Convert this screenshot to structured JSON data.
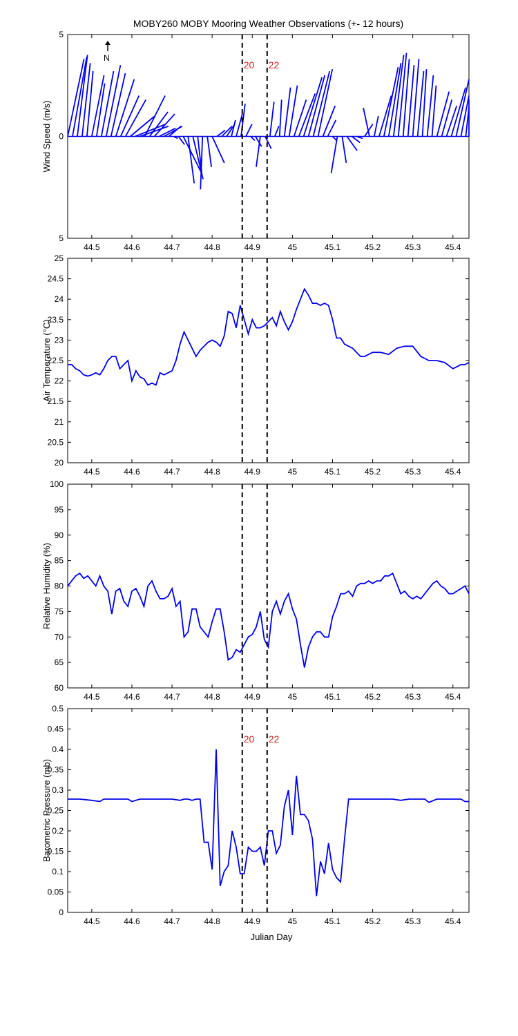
{
  "title": "MOBY260 MOBY Mooring Weather Observations (+- 12 hours)",
  "xlabel": "Julian Day",
  "north_label": "N",
  "x_ticks": [
    "44.5",
    "44.6",
    "44.7",
    "44.8",
    "44.9",
    "45",
    "45.1",
    "45.2",
    "45.3",
    "45.4"
  ],
  "markers": [
    {
      "x": 44.875,
      "label": "20"
    },
    {
      "x": 44.937,
      "label": "22"
    }
  ],
  "colors": {
    "series": "#0000ee",
    "marker_label": "#cc2222",
    "marker_line": "#000000"
  },
  "chart_data": [
    {
      "type": "line",
      "subtype": "wind-vector-stick",
      "ylabel": "Wind Speed (m/s)",
      "xlim": [
        44.44,
        45.44
      ],
      "ylim": [
        -5,
        5
      ],
      "y_ticks": [
        {
          "v": 5,
          "label": "5"
        },
        {
          "v": 0,
          "label": "0"
        },
        {
          "v": -5,
          "label": "5"
        }
      ],
      "marker_labels_visible": true,
      "vectors": [
        [
          44.44,
          0.8,
          3.8
        ],
        [
          44.452,
          0.7,
          3.9
        ],
        [
          44.464,
          0.5,
          4.0
        ],
        [
          44.476,
          0.4,
          3.6
        ],
        [
          44.488,
          0.3,
          3.2
        ],
        [
          44.5,
          0.6,
          3.0
        ],
        [
          44.512,
          0.4,
          2.6
        ],
        [
          44.524,
          0.6,
          3.2
        ],
        [
          44.536,
          0.7,
          3.5
        ],
        [
          44.548,
          0.7,
          3.1
        ],
        [
          44.56,
          0.9,
          2.8
        ],
        [
          44.572,
          0.9,
          2.0
        ],
        [
          44.584,
          1.0,
          1.8
        ],
        [
          44.596,
          1.2,
          1.0
        ],
        [
          44.608,
          1.5,
          0.6
        ],
        [
          44.62,
          1.4,
          0.5
        ],
        [
          44.632,
          1.0,
          2.0
        ],
        [
          44.644,
          0.9,
          1.2
        ],
        [
          44.656,
          1.0,
          1.1
        ],
        [
          44.668,
          0.8,
          0.4
        ],
        [
          44.68,
          0.9,
          0.5
        ],
        [
          44.692,
          0.6,
          0.5
        ],
        [
          44.704,
          0.2,
          -0.1
        ],
        [
          44.716,
          0.3,
          -0.4
        ],
        [
          44.728,
          0.9,
          -1.8
        ],
        [
          44.74,
          0.3,
          -2.3
        ],
        [
          44.752,
          0.5,
          -2.1
        ],
        [
          44.764,
          0.2,
          -1.8
        ],
        [
          44.776,
          -0.1,
          -2.6
        ],
        [
          44.788,
          0.2,
          -1.5
        ],
        [
          44.8,
          0.6,
          -1.3
        ],
        [
          44.812,
          0.4,
          0.3
        ],
        [
          44.824,
          0.5,
          0.5
        ],
        [
          44.836,
          0.4,
          0.6
        ],
        [
          44.848,
          0.2,
          0.8
        ],
        [
          44.86,
          0.3,
          1.1
        ],
        [
          44.872,
          0.2,
          1.6
        ],
        [
          44.884,
          0.3,
          0.6
        ],
        [
          44.896,
          0.2,
          -0.2
        ],
        [
          44.908,
          0.3,
          -0.5
        ],
        [
          44.92,
          -0.2,
          -1.5
        ],
        [
          44.932,
          0.3,
          -0.6
        ],
        [
          44.944,
          0.2,
          1.7
        ],
        [
          44.956,
          0.2,
          0.5
        ],
        [
          44.968,
          0.1,
          1.8
        ],
        [
          44.98,
          0.3,
          2.4
        ],
        [
          44.992,
          0.4,
          2.5
        ],
        [
          45.004,
          0.6,
          1.8
        ],
        [
          45.016,
          0.8,
          2.1
        ],
        [
          45.028,
          0.9,
          2.9
        ],
        [
          45.04,
          0.8,
          3.0
        ],
        [
          45.052,
          0.8,
          3.2
        ],
        [
          45.064,
          0.7,
          3.3
        ],
        [
          45.076,
          0.6,
          1.5
        ],
        [
          45.088,
          0.4,
          0.8
        ],
        [
          45.1,
          0.2,
          -0.2
        ],
        [
          45.112,
          -0.3,
          -1.8
        ],
        [
          45.124,
          0.2,
          -1.3
        ],
        [
          45.136,
          0.5,
          -0.7
        ],
        [
          45.148,
          0.4,
          -0.3
        ],
        [
          45.16,
          0.3,
          -0.1
        ],
        [
          45.18,
          0.4,
          0.6
        ],
        [
          45.192,
          -0.3,
          1.4
        ],
        [
          45.204,
          0.2,
          1.0
        ],
        [
          45.216,
          0.6,
          2.0
        ],
        [
          45.228,
          0.7,
          3.4
        ],
        [
          45.24,
          0.6,
          3.6
        ],
        [
          45.252,
          0.5,
          4.0
        ],
        [
          45.264,
          0.4,
          4.1
        ],
        [
          45.276,
          0.3,
          3.8
        ],
        [
          45.288,
          0.3,
          3.5
        ],
        [
          45.3,
          0.3,
          3.8
        ],
        [
          45.312,
          0.3,
          3.2
        ],
        [
          45.324,
          0.2,
          3.3
        ],
        [
          45.336,
          0.3,
          3.0
        ],
        [
          45.348,
          0.2,
          2.5
        ],
        [
          45.36,
          0.6,
          2.2
        ],
        [
          45.372,
          0.5,
          1.8
        ],
        [
          45.384,
          0.5,
          1.5
        ],
        [
          45.396,
          0.7,
          2.4
        ],
        [
          45.408,
          0.7,
          2.8
        ],
        [
          45.42,
          0.8,
          2.0
        ],
        [
          45.432,
          0.6,
          1.4
        ],
        [
          45.44,
          0.4,
          1.8
        ]
      ]
    },
    {
      "type": "line",
      "ylabel": "Air Temperature (°C)",
      "xlim": [
        44.44,
        45.44
      ],
      "ylim": [
        20,
        25
      ],
      "y_ticks": [
        {
          "v": 20,
          "label": "20"
        },
        {
          "v": 20.5,
          "label": "20.5"
        },
        {
          "v": 21,
          "label": "21"
        },
        {
          "v": 21.5,
          "label": "21.5"
        },
        {
          "v": 22,
          "label": "22"
        },
        {
          "v": 22.5,
          "label": "22.5"
        },
        {
          "v": 23,
          "label": "23"
        },
        {
          "v": 23.5,
          "label": "23.5"
        },
        {
          "v": 24,
          "label": "24"
        },
        {
          "v": 24.5,
          "label": "24.5"
        },
        {
          "v": 25,
          "label": "25"
        }
      ],
      "marker_labels_visible": false,
      "x": [
        44.44,
        44.45,
        44.46,
        44.47,
        44.48,
        44.49,
        44.5,
        44.51,
        44.52,
        44.53,
        44.54,
        44.55,
        44.56,
        44.57,
        44.58,
        44.59,
        44.6,
        44.61,
        44.62,
        44.63,
        44.64,
        44.65,
        44.66,
        44.67,
        44.68,
        44.69,
        44.7,
        44.71,
        44.72,
        44.73,
        44.74,
        44.75,
        44.76,
        44.77,
        44.78,
        44.79,
        44.8,
        44.81,
        44.82,
        44.83,
        44.84,
        44.85,
        44.86,
        44.87,
        44.88,
        44.89,
        44.9,
        44.91,
        44.92,
        44.93,
        44.94,
        44.95,
        44.96,
        44.97,
        44.98,
        44.99,
        45.0,
        45.01,
        45.02,
        45.03,
        45.04,
        45.05,
        45.06,
        45.07,
        45.08,
        45.09,
        45.1,
        45.11,
        45.12,
        45.13,
        45.14,
        45.15,
        45.16,
        45.17,
        45.18,
        45.19,
        45.2,
        45.22,
        45.24,
        45.26,
        45.28,
        45.3,
        45.32,
        45.33,
        45.34,
        45.36,
        45.38,
        45.4,
        45.41,
        45.42,
        45.43,
        45.44
      ],
      "y": [
        22.4,
        22.4,
        22.3,
        22.25,
        22.15,
        22.12,
        22.15,
        22.2,
        22.15,
        22.3,
        22.5,
        22.6,
        22.6,
        22.3,
        22.4,
        22.5,
        22.0,
        22.25,
        22.1,
        22.05,
        21.9,
        21.95,
        21.9,
        22.2,
        22.15,
        22.2,
        22.25,
        22.5,
        22.9,
        23.2,
        23.0,
        22.8,
        22.6,
        22.75,
        22.85,
        22.95,
        23.0,
        22.95,
        22.85,
        23.1,
        23.7,
        23.65,
        23.3,
        23.85,
        23.5,
        23.15,
        23.5,
        23.3,
        23.3,
        23.35,
        23.45,
        23.55,
        23.35,
        23.7,
        23.45,
        23.25,
        23.45,
        23.75,
        24.0,
        24.25,
        24.1,
        23.9,
        23.9,
        23.85,
        23.9,
        23.85,
        23.5,
        23.05,
        23.05,
        22.9,
        22.85,
        22.8,
        22.7,
        22.6,
        22.6,
        22.65,
        22.7,
        22.7,
        22.65,
        22.8,
        22.85,
        22.85,
        22.6,
        22.55,
        22.5,
        22.5,
        22.45,
        22.3,
        22.35,
        22.4,
        22.4,
        22.45
      ]
    },
    {
      "type": "line",
      "ylabel": "Relative Humidity (%)",
      "xlim": [
        44.44,
        45.44
      ],
      "ylim": [
        60,
        100
      ],
      "y_ticks": [
        {
          "v": 60,
          "label": "60"
        },
        {
          "v": 65,
          "label": "65"
        },
        {
          "v": 70,
          "label": "70"
        },
        {
          "v": 75,
          "label": "75"
        },
        {
          "v": 80,
          "label": "80"
        },
        {
          "v": 85,
          "label": "85"
        },
        {
          "v": 90,
          "label": "90"
        },
        {
          "v": 95,
          "label": "95"
        },
        {
          "v": 100,
          "label": "100"
        }
      ],
      "marker_labels_visible": false,
      "x": [
        44.44,
        44.45,
        44.46,
        44.47,
        44.48,
        44.49,
        44.5,
        44.51,
        44.52,
        44.53,
        44.54,
        44.55,
        44.56,
        44.57,
        44.58,
        44.59,
        44.6,
        44.61,
        44.62,
        44.63,
        44.64,
        44.65,
        44.66,
        44.67,
        44.68,
        44.69,
        44.7,
        44.71,
        44.72,
        44.73,
        44.74,
        44.75,
        44.76,
        44.77,
        44.78,
        44.79,
        44.8,
        44.81,
        44.82,
        44.83,
        44.84,
        44.85,
        44.86,
        44.87,
        44.88,
        44.89,
        44.9,
        44.91,
        44.92,
        44.93,
        44.94,
        44.95,
        44.96,
        44.97,
        44.98,
        44.99,
        45.0,
        45.01,
        45.02,
        45.03,
        45.04,
        45.05,
        45.06,
        45.07,
        45.08,
        45.09,
        45.1,
        45.11,
        45.12,
        45.13,
        45.14,
        45.15,
        45.16,
        45.17,
        45.18,
        45.19,
        45.2,
        45.21,
        45.22,
        45.23,
        45.24,
        45.25,
        45.26,
        45.27,
        45.28,
        45.29,
        45.3,
        45.31,
        45.32,
        45.33,
        45.34,
        45.35,
        45.36,
        45.37,
        45.38,
        45.39,
        45.4,
        45.41,
        45.42,
        45.43,
        45.44
      ],
      "y": [
        80,
        81,
        82,
        82.5,
        81.5,
        82,
        81,
        80,
        82,
        80,
        79,
        74.5,
        79,
        79.5,
        77,
        76,
        79,
        79.5,
        78,
        76,
        80,
        81,
        79,
        77.5,
        77.5,
        78,
        79.5,
        76,
        77,
        70,
        71,
        75.5,
        75.5,
        72,
        71,
        70,
        73,
        75.5,
        75.5,
        71,
        65.5,
        66,
        67.5,
        67,
        68.5,
        70,
        70.5,
        72,
        75,
        69.5,
        68,
        75,
        77,
        74.5,
        77,
        78.5,
        75.5,
        73.5,
        68.5,
        64,
        68,
        70,
        71,
        71,
        70,
        70,
        74,
        76,
        78.5,
        78.5,
        79,
        78,
        80,
        80.5,
        80.5,
        81,
        80.5,
        81,
        81,
        82,
        82,
        82.5,
        80.5,
        78.5,
        79,
        78,
        77.5,
        78,
        77.5,
        78.5,
        79.5,
        80.5,
        81,
        80,
        79.5,
        78.5,
        78.5,
        79,
        79.5,
        80,
        78.5
      ]
    },
    {
      "type": "line",
      "ylabel": "Barometric Pressure (mb)",
      "xlim": [
        44.44,
        45.44
      ],
      "ylim": [
        0,
        0.5
      ],
      "y_ticks": [
        {
          "v": 0,
          "label": "0"
        },
        {
          "v": 0.05,
          "label": "0.05"
        },
        {
          "v": 0.1,
          "label": "0.1"
        },
        {
          "v": 0.15,
          "label": "0.15"
        },
        {
          "v": 0.2,
          "label": "0.2"
        },
        {
          "v": 0.25,
          "label": "0.25"
        },
        {
          "v": 0.3,
          "label": "0.3"
        },
        {
          "v": 0.35,
          "label": "0.35"
        },
        {
          "v": 0.4,
          "label": "0.4"
        },
        {
          "v": 0.45,
          "label": "0.45"
        },
        {
          "v": 0.5,
          "label": "0.5"
        }
      ],
      "marker_labels_visible": true,
      "x": [
        44.44,
        44.47,
        44.5,
        44.52,
        44.53,
        44.55,
        44.57,
        44.59,
        44.6,
        44.62,
        44.64,
        44.66,
        44.68,
        44.7,
        44.72,
        44.73,
        44.74,
        44.75,
        44.76,
        44.77,
        44.78,
        44.79,
        44.8,
        44.81,
        44.82,
        44.83,
        44.84,
        44.85,
        44.86,
        44.87,
        44.88,
        44.89,
        44.9,
        44.91,
        44.92,
        44.93,
        44.94,
        44.95,
        44.96,
        44.97,
        44.98,
        44.99,
        45.0,
        45.01,
        45.02,
        45.03,
        45.04,
        45.05,
        45.06,
        45.07,
        45.08,
        45.09,
        45.1,
        45.11,
        45.12,
        45.13,
        45.14,
        45.15,
        45.17,
        45.2,
        45.22,
        45.25,
        45.27,
        45.29,
        45.3,
        45.32,
        45.33,
        45.34,
        45.36,
        45.38,
        45.4,
        45.42,
        45.43,
        45.44
      ],
      "y": [
        0.278,
        0.278,
        0.275,
        0.272,
        0.278,
        0.278,
        0.278,
        0.278,
        0.272,
        0.278,
        0.278,
        0.278,
        0.278,
        0.278,
        0.275,
        0.278,
        0.278,
        0.275,
        0.278,
        0.278,
        0.172,
        0.172,
        0.105,
        0.4,
        0.065,
        0.1,
        0.115,
        0.2,
        0.16,
        0.095,
        0.095,
        0.16,
        0.15,
        0.15,
        0.16,
        0.115,
        0.2,
        0.2,
        0.145,
        0.165,
        0.26,
        0.3,
        0.19,
        0.335,
        0.24,
        0.24,
        0.225,
        0.18,
        0.04,
        0.125,
        0.095,
        0.17,
        0.105,
        0.085,
        0.075,
        0.18,
        0.278,
        0.278,
        0.278,
        0.278,
        0.278,
        0.278,
        0.275,
        0.278,
        0.278,
        0.278,
        0.278,
        0.27,
        0.278,
        0.278,
        0.278,
        0.278,
        0.272,
        0.272
      ]
    }
  ]
}
